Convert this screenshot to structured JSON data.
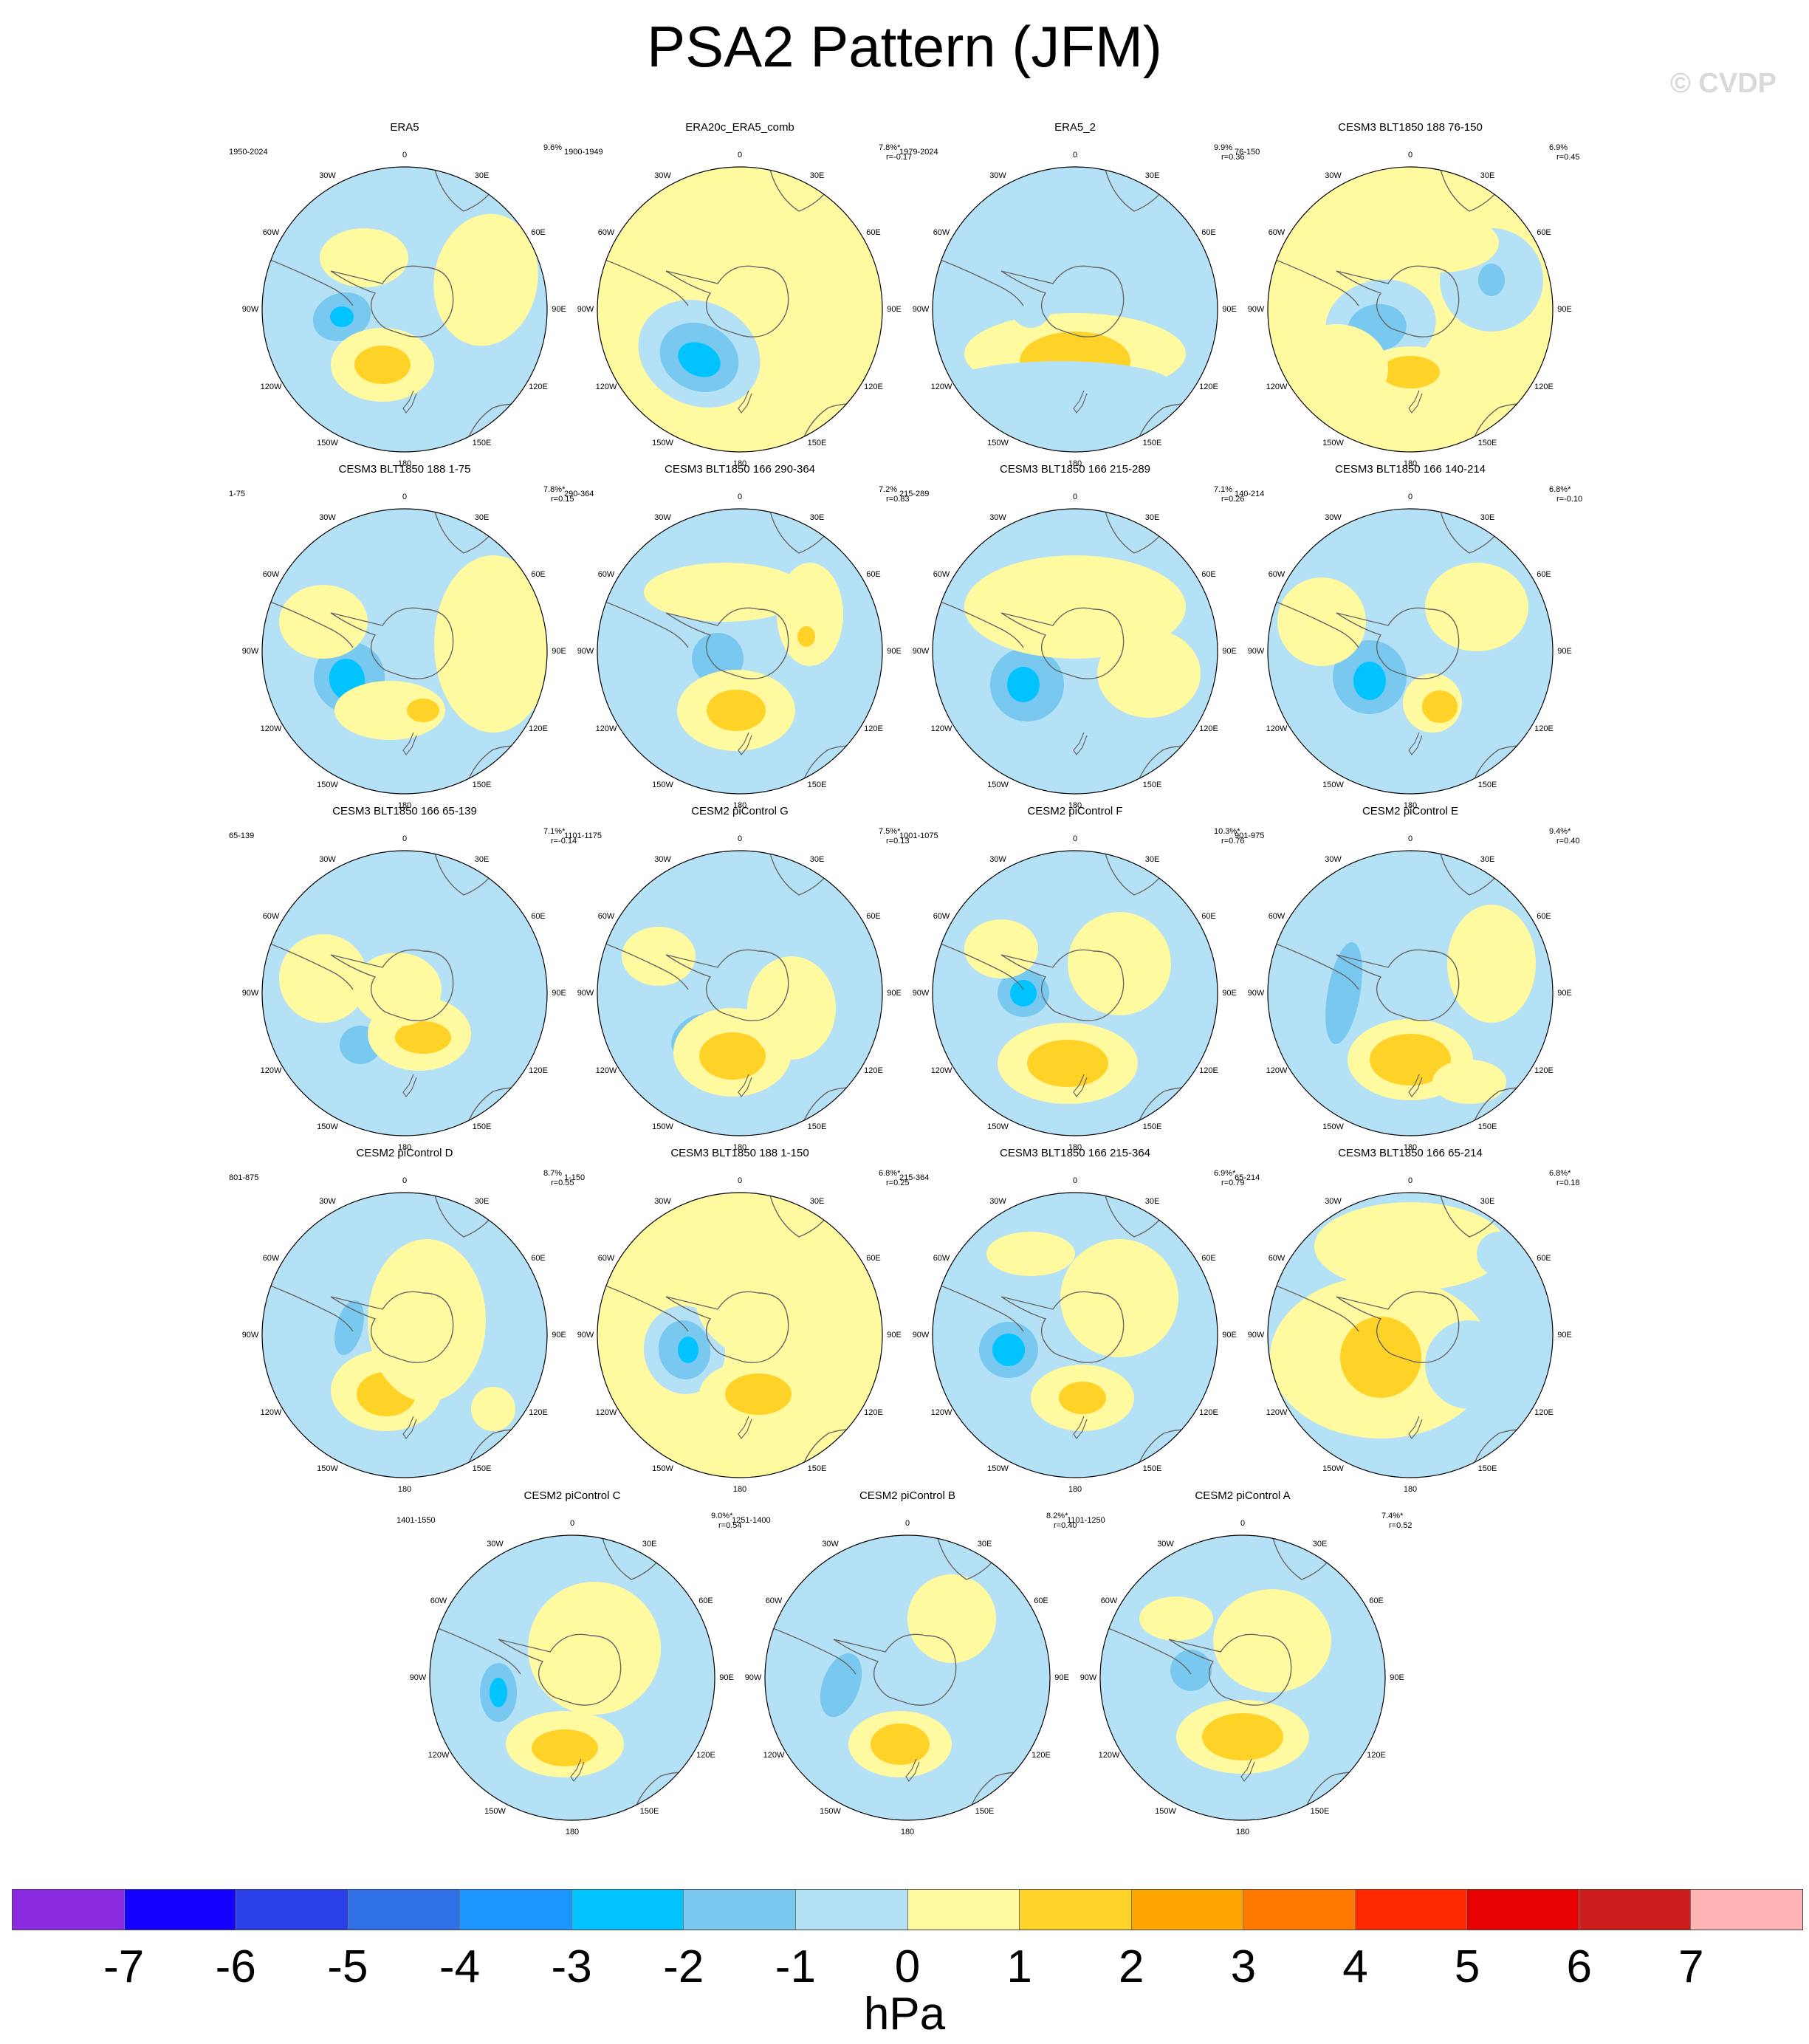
{
  "title": "PSA2 Pattern (JFM)",
  "watermark": "© CVDP",
  "lon_labels": [
    "0",
    "30E",
    "60E",
    "90E",
    "120E",
    "150E",
    "180",
    "150W",
    "120W",
    "90W",
    "60W",
    "30W"
  ],
  "panels": [
    {
      "name": "ERA5",
      "period": "1950-2024",
      "pct": "9.6%",
      "r": ""
    },
    {
      "name": "ERA20c_ERA5_comb",
      "period": "1900-1949",
      "pct": "7.8%*",
      "r": "r=-0.17"
    },
    {
      "name": "ERA5_2",
      "period": "1979-2024",
      "pct": "9.9%",
      "r": "r=0.36"
    },
    {
      "name": "CESM3 BLT1850 188 76-150",
      "period": "76-150",
      "pct": "6.9%",
      "r": "r=0.45"
    },
    {
      "name": "CESM3 BLT1850 188 1-75",
      "period": "1-75",
      "pct": "7.8%*",
      "r": "r=0.15"
    },
    {
      "name": "CESM3 BLT1850 166 290-364",
      "period": "290-364",
      "pct": "7.2%",
      "r": "r=0.83"
    },
    {
      "name": "CESM3 BLT1850 166 215-289",
      "period": "215-289",
      "pct": "7.1%",
      "r": "r=0.26"
    },
    {
      "name": "CESM3 BLT1850 166 140-214",
      "period": "140-214",
      "pct": "6.8%*",
      "r": "r=-0.10"
    },
    {
      "name": "CESM3 BLT1850 166 65-139",
      "period": "65-139",
      "pct": "7.1%*",
      "r": "r=-0.14"
    },
    {
      "name": "CESM2 piControl G",
      "period": "1101-1175",
      "pct": "7.5%*",
      "r": "r=0.13"
    },
    {
      "name": "CESM2 piControl F",
      "period": "1001-1075",
      "pct": "10.3%*",
      "r": "r=0.76"
    },
    {
      "name": "CESM2 piControl E",
      "period": "901-975",
      "pct": "9.4%*",
      "r": "r=0.40"
    },
    {
      "name": "CESM2 piControl D",
      "period": "801-875",
      "pct": "8.7%",
      "r": "r=0.55"
    },
    {
      "name": "CESM3 BLT1850 188 1-150",
      "period": "1-150",
      "pct": "6.8%*",
      "r": "r=0.25"
    },
    {
      "name": "CESM3 BLT1850 166 215-364",
      "period": "215-364",
      "pct": "6.9%*",
      "r": "r=0.79"
    },
    {
      "name": "CESM3 BLT1850 166 65-214",
      "period": "65-214",
      "pct": "6.8%*",
      "r": "r=0.18"
    },
    {
      "name": "CESM2 piControl C",
      "period": "1401-1550",
      "pct": "9.0%*",
      "r": "r=0.54"
    },
    {
      "name": "CESM2 piControl B",
      "period": "1251-1400",
      "pct": "8.2%*",
      "r": "r=0.40"
    },
    {
      "name": "CESM2 piControl A",
      "period": "1101-1250",
      "pct": "7.4%*",
      "r": "r=0.52"
    }
  ],
  "colorbar": {
    "colors": [
      "#8a2be2",
      "#1400ff",
      "#2b3fe6",
      "#3070e6",
      "#1e96ff",
      "#00c3ff",
      "#78c8f0",
      "#b4e1f5",
      "#fffaa0",
      "#ffd228",
      "#ffa500",
      "#ff7800",
      "#ff2800",
      "#e60000",
      "#cd1e1e",
      "#ffb4b4"
    ],
    "labels": [
      "-7",
      "-6",
      "-5",
      "-4",
      "-3",
      "-2",
      "-1",
      "0",
      "1",
      "2",
      "3",
      "4",
      "5",
      "6",
      "7"
    ],
    "units": "hPa"
  }
}
